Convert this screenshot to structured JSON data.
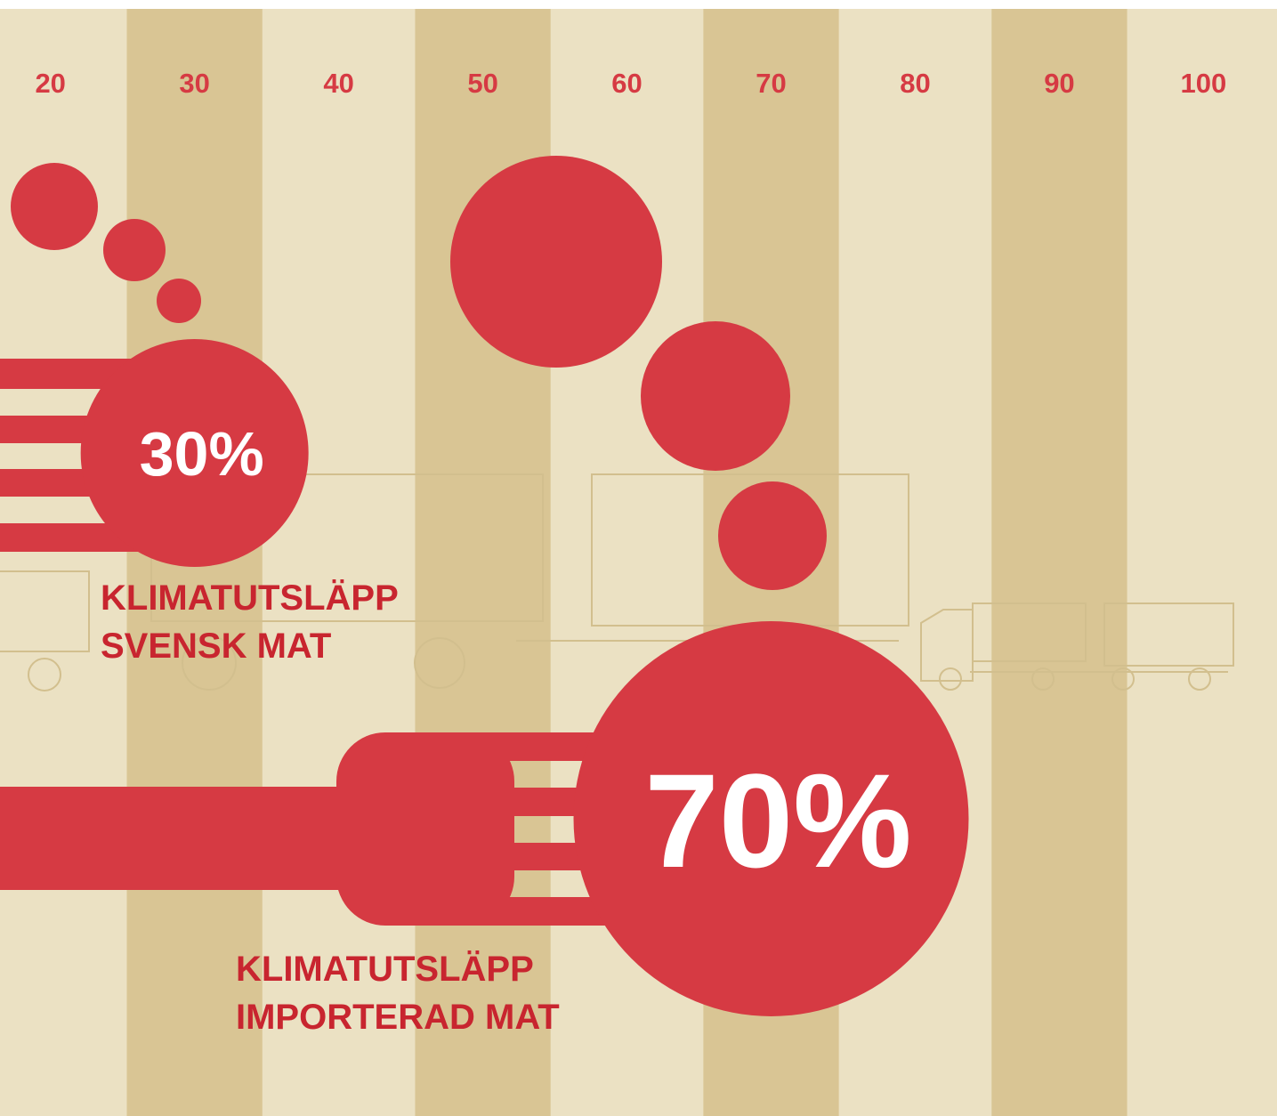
{
  "chart_data": {
    "type": "bar",
    "categories": [
      "KLIMATUTSLÄPP SVENSK MAT",
      "KLIMATUTSLÄPP IMPORTERAD MAT"
    ],
    "values": [
      30,
      70
    ],
    "value_labels": [
      "30%",
      "70%"
    ],
    "color": "#d63a43",
    "xlim": [
      16.5,
      105.1
    ],
    "xticks": [
      20,
      30,
      40,
      50,
      60,
      70,
      80,
      90,
      100
    ],
    "grid": true
  }
}
